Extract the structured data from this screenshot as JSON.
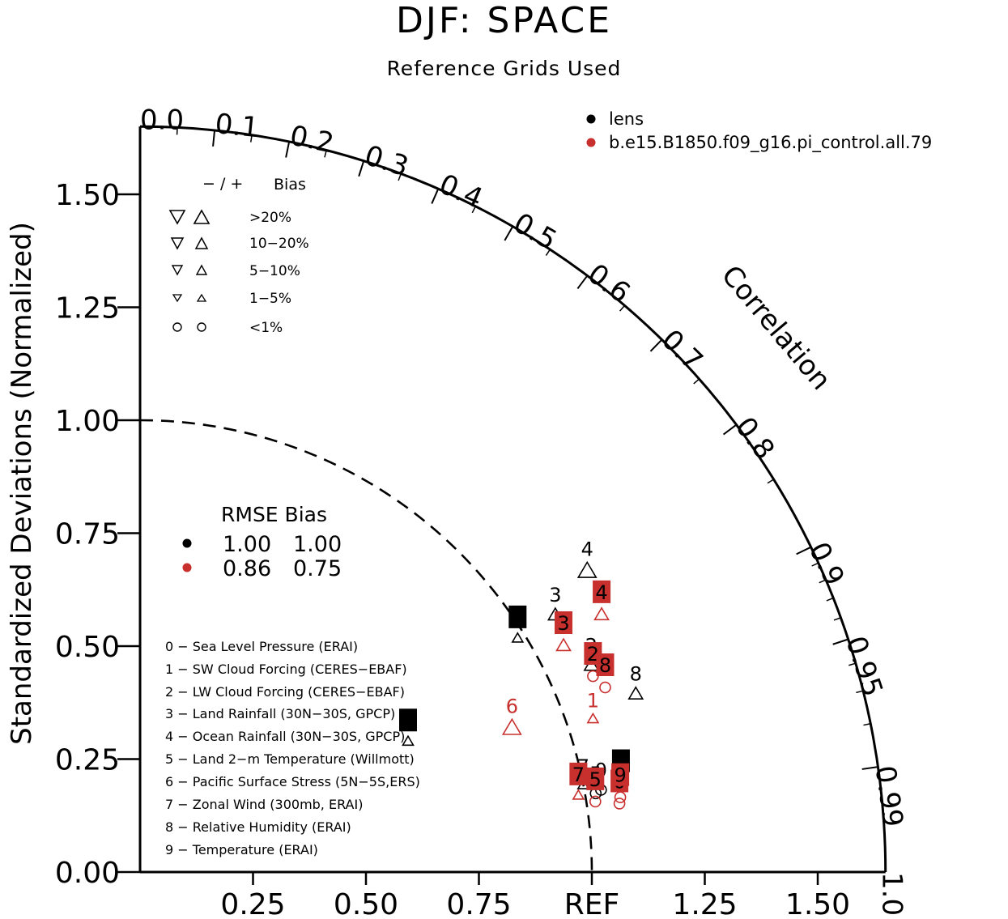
{
  "header": {
    "title": "DJF: SPACE",
    "subtitle": "Reference Grids Used"
  },
  "legend_cases": [
    {
      "label": "lens",
      "color": "#000000"
    },
    {
      "label": "b.e15.B1850.f09_g16.pi_control.all.79",
      "color": "#c8302e"
    }
  ],
  "bias_key": {
    "header_signs": "− / +",
    "header_label": "Bias",
    "rows": [
      {
        "marker": "triangle",
        "label": ">20%"
      },
      {
        "marker": "triangle",
        "label": "10−20%"
      },
      {
        "marker": "triangle",
        "label": "5−10%"
      },
      {
        "marker": "triangle",
        "label": "1−5%"
      },
      {
        "marker": "circle",
        "label": "<1%"
      }
    ]
  },
  "rmse_table": {
    "header": "RMSE Bias",
    "rows": [
      {
        "color": "#000000",
        "rmse": "1.00",
        "bias": "1.00"
      },
      {
        "color": "#c8302e",
        "rmse": "0.86",
        "bias": "0.75"
      }
    ]
  },
  "variables": [
    {
      "id": "0",
      "label": "0 − Sea Level Pressure (ERAI)"
    },
    {
      "id": "1",
      "label": "1 − SW Cloud Forcing (CERES−EBAF)"
    },
    {
      "id": "2",
      "label": "2 − LW Cloud Forcing (CERES−EBAF)"
    },
    {
      "id": "3",
      "label": "3 − Land Rainfall (30N−30S, GPCP)"
    },
    {
      "id": "4",
      "label": "4 − Ocean Rainfall (30N−30S, GPCP)"
    },
    {
      "id": "5",
      "label": "5 − Land 2−m Temperature (Willmott)"
    },
    {
      "id": "6",
      "label": "6 − Pacific Surface Stress (5N−5S,ERS)"
    },
    {
      "id": "7",
      "label": "7 − Zonal Wind (300mb, ERAI)"
    },
    {
      "id": "8",
      "label": "8 − Relative Humidity (ERAI)"
    },
    {
      "id": "9",
      "label": "9 − Temperature (ERAI)"
    }
  ],
  "chart_data": {
    "type": "scatter",
    "diagram": "taylor",
    "ylabel": "Standardized Deviations (Normalized)",
    "correlation_label": "Correlation",
    "ylim": [
      0,
      1.65
    ],
    "xlim": [
      0,
      1.65
    ],
    "y_ticks": [
      "0.00",
      "0.25",
      "0.50",
      "0.75",
      "1.00",
      "1.25",
      "1.50"
    ],
    "x_ticks": [
      {
        "value": 0.25,
        "label": "0.25"
      },
      {
        "value": 0.5,
        "label": "0.50"
      },
      {
        "value": 0.75,
        "label": "0.75"
      },
      {
        "value": 1.0,
        "label": "REF"
      },
      {
        "value": 1.25,
        "label": "1.25"
      },
      {
        "value": 1.5,
        "label": "1.50"
      }
    ],
    "correlation_ticks": [
      {
        "value": 0.0,
        "label": "0.0"
      },
      {
        "value": 0.1,
        "label": "0.1"
      },
      {
        "value": 0.2,
        "label": "0.2"
      },
      {
        "value": 0.3,
        "label": "0.3"
      },
      {
        "value": 0.4,
        "label": "0.4"
      },
      {
        "value": 0.5,
        "label": "0.5"
      },
      {
        "value": 0.6,
        "label": "0.6"
      },
      {
        "value": 0.7,
        "label": "0.7"
      },
      {
        "value": 0.8,
        "label": "0.8"
      },
      {
        "value": 0.9,
        "label": "0.9"
      },
      {
        "value": 0.95,
        "label": "0.95"
      },
      {
        "value": 0.99,
        "label": "0.99"
      },
      {
        "value": 1.0,
        "label": "1.0"
      }
    ],
    "reference_std": 1.0,
    "series": [
      {
        "name": "lens",
        "color": "#000000",
        "points": [
          {
            "id": "0",
            "std": 1.039,
            "corr": 0.982,
            "bias": "<1%"
          },
          {
            "id": "1",
            "std": 0.989,
            "corr": 0.845,
            "bias": "1-5%"
          },
          {
            "id": "2",
            "std": 1.105,
            "corr": 0.904,
            "bias": "5-10%"
          },
          {
            "id": "3",
            "std": 1.089,
            "corr": 0.844,
            "bias": "5-10%"
          },
          {
            "id": "4",
            "std": 1.204,
            "corr": 0.822,
            "bias": "10-20%"
          },
          {
            "id": "5",
            "std": 1.026,
            "corr": 0.983,
            "bias": "<1%"
          },
          {
            "id": "6",
            "std": 0.665,
            "corr": 0.892,
            "bias": "1-5%"
          },
          {
            "id": "7",
            "std": 1.002,
            "corr": 0.979,
            "bias": "1-5%"
          },
          {
            "id": "8",
            "std": 1.171,
            "corr": 0.937,
            "bias": "5-10%"
          },
          {
            "id": "9",
            "std": 1.085,
            "corr": 0.981,
            "bias": "<1%"
          }
        ]
      },
      {
        "name": "b.e15.B1850.f09_g16.pi_control.all.79",
        "color": "#c8302e",
        "points": [
          {
            "id": "0",
            "std": 1.074,
            "corr": 0.988,
            "bias": "<1%"
          },
          {
            "id": "1",
            "std": 1.062,
            "corr": 0.944,
            "bias": "1-5%"
          },
          {
            "id": "2",
            "std": 1.098,
            "corr": 0.913,
            "bias": "<1%"
          },
          {
            "id": "3",
            "std": 1.07,
            "corr": 0.876,
            "bias": "5-10%"
          },
          {
            "id": "4",
            "std": 1.177,
            "corr": 0.868,
            "bias": "5-10%"
          },
          {
            "id": "5",
            "std": 1.022,
            "corr": 0.986,
            "bias": "<1%"
          },
          {
            "id": "6",
            "std": 0.89,
            "corr": 0.925,
            "bias": "10-20%"
          },
          {
            "id": "7",
            "std": 0.987,
            "corr": 0.983,
            "bias": "1-5%"
          },
          {
            "id": "8",
            "std": 1.113,
            "corr": 0.925,
            "bias": "<1%"
          },
          {
            "id": "9",
            "std": 1.078,
            "corr": 0.986,
            "bias": "<1%"
          }
        ]
      }
    ]
  }
}
